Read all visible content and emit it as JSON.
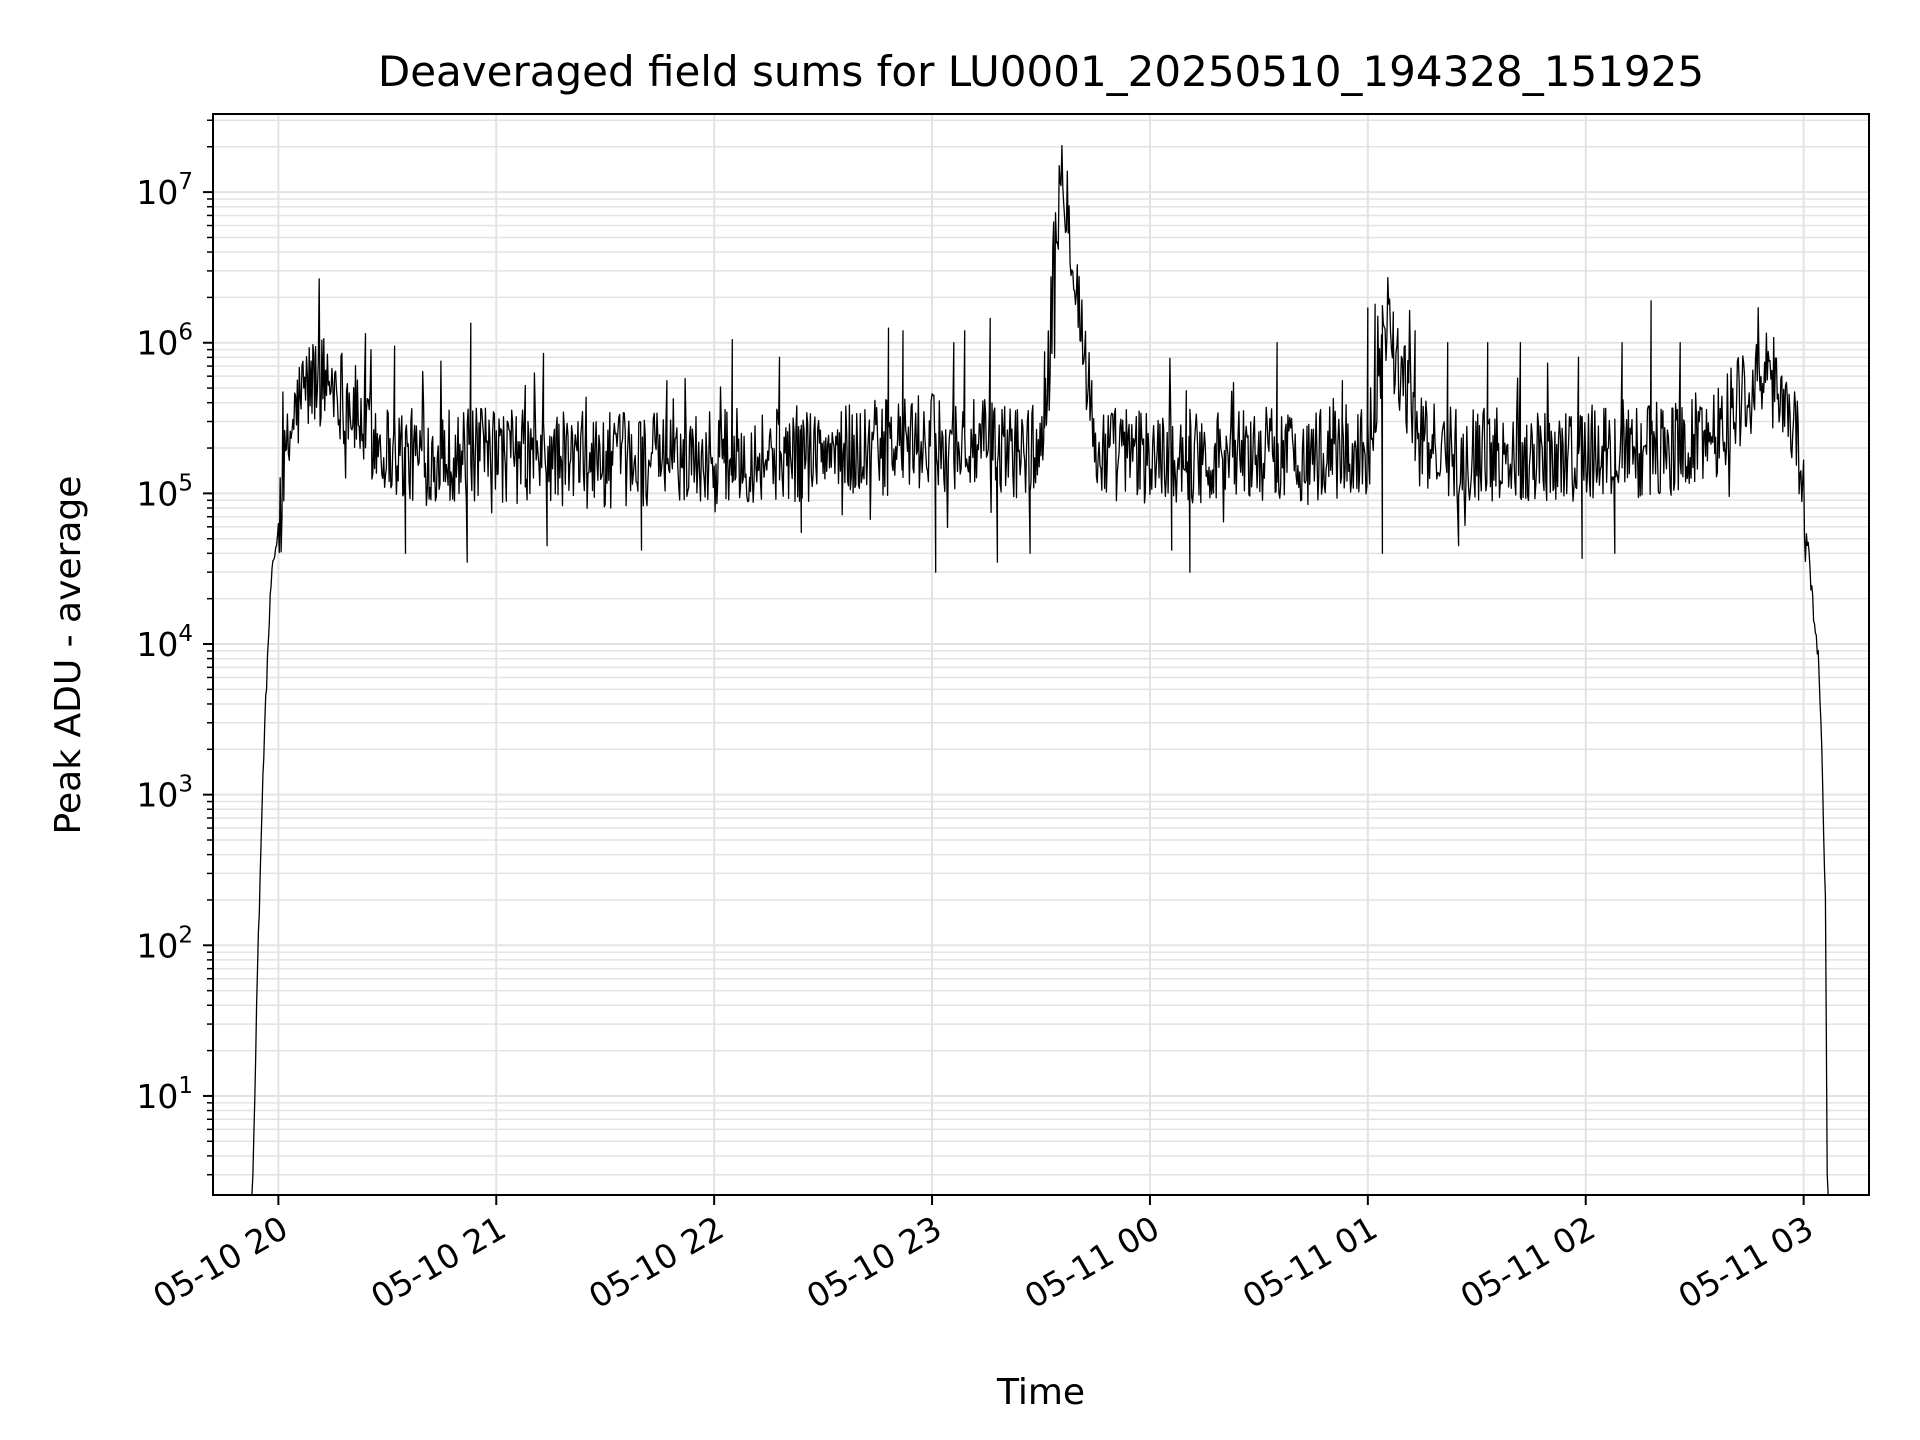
{
  "chart_data": {
    "type": "line",
    "title": "Deaveraged field sums for LU0001_20250510_194328_151925",
    "xlabel": "Time",
    "ylabel": "Peak ADU - average",
    "yscale": "log",
    "ylim": [
      2.2,
      33000000
    ],
    "xlim": [
      "2025-05-10 19:42:00",
      "2025-05-11 03:18:00"
    ],
    "grid": "major and minor",
    "x_tick_labels": [
      "05-10 20",
      "05-10 21",
      "05-10 22",
      "05-10 23",
      "05-11 00",
      "05-11 01",
      "05-11 02",
      "05-11 03"
    ],
    "x_ticks": [
      "2025-05-10 20:00:00",
      "2025-05-10 21:00:00",
      "2025-05-10 22:00:00",
      "2025-05-10 23:00:00",
      "2025-05-11 00:00:00",
      "2025-05-11 01:00:00",
      "2025-05-11 02:00:00",
      "2025-05-11 03:00:00"
    ],
    "y_ticks": [
      {
        "value": 10,
        "base": "10",
        "exp": "1"
      },
      {
        "value": 100,
        "base": "10",
        "exp": "2"
      },
      {
        "value": 1000,
        "base": "10",
        "exp": "3"
      },
      {
        "value": 10000,
        "base": "10",
        "exp": "4"
      },
      {
        "value": 100000,
        "base": "10",
        "exp": "5"
      },
      {
        "value": 1000000,
        "base": "10",
        "exp": "6"
      },
      {
        "value": 10000000,
        "base": "10",
        "exp": "7"
      }
    ],
    "line_color": "#000000",
    "series": [
      {
        "x": [
          "2025-05-10 19:53:00",
          "2025-05-10 19:54:00",
          "2025-05-10 19:55:00",
          "2025-05-10 19:56:00",
          "2025-05-10 19:57:00",
          "2025-05-10 19:58:00",
          "2025-05-10 20:00:00",
          "2025-05-10 20:02:00",
          "2025-05-10 20:04:00",
          "2025-05-10 20:07:00",
          "2025-05-10 20:10:00",
          "2025-05-10 20:15:00",
          "2025-05-10 20:20:00",
          "2025-05-10 20:25:00",
          "2025-05-10 20:30:00",
          "2025-05-10 20:35:00",
          "2025-05-10 20:40:00",
          "2025-05-10 20:45:00",
          "2025-05-10 20:50:00",
          "2025-05-10 21:00:00",
          "2025-05-10 21:15:00",
          "2025-05-10 21:30:00",
          "2025-05-10 21:45:00",
          "2025-05-10 22:00:00",
          "2025-05-10 22:15:00",
          "2025-05-10 22:30:00",
          "2025-05-10 22:45:00",
          "2025-05-10 23:00:00",
          "2025-05-10 23:15:00",
          "2025-05-10 23:30:00",
          "2025-05-10 23:36:00",
          "2025-05-10 23:45:00",
          "2025-05-11 00:00:00",
          "2025-05-11 00:15:00",
          "2025-05-11 00:30:00",
          "2025-05-11 00:45:00",
          "2025-05-11 01:00:00",
          "2025-05-11 01:05:00",
          "2025-05-11 01:15:00",
          "2025-05-11 01:30:00",
          "2025-05-11 01:45:00",
          "2025-05-11 02:00:00",
          "2025-05-11 02:15:00",
          "2025-05-11 02:25:00",
          "2025-05-11 02:35:00",
          "2025-05-11 02:42:00",
          "2025-05-11 02:48:00",
          "2025-05-11 02:52:00",
          "2025-05-11 02:55:00",
          "2025-05-11 02:58:00",
          "2025-05-11 03:00:00",
          "2025-05-11 03:02:00",
          "2025-05-11 03:04:00",
          "2025-05-11 03:05:00",
          "2025-05-11 03:06:00",
          "2025-05-11 03:06:30"
        ],
        "y": [
          3,
          40,
          300,
          2000,
          8000,
          25000,
          60000,
          150000,
          300000,
          480000,
          570000,
          560000,
          380000,
          250000,
          200000,
          180000,
          170000,
          190000,
          175000,
          180000,
          170000,
          165000,
          170000,
          175000,
          180000,
          185000,
          200000,
          220000,
          200000,
          190000,
          16000000,
          190000,
          175000,
          180000,
          185000,
          180000,
          190000,
          1500000,
          200000,
          185000,
          180000,
          185000,
          190000,
          200000,
          250000,
          420000,
          560000,
          550000,
          420000,
          250000,
          100000,
          25000,
          8000,
          2000,
          200,
          3
        ]
      }
    ],
    "noise": {
      "seed": 12345,
      "steps_per_min": 4,
      "amp_dex": 0.32
    },
    "spikes": [
      {
        "x": "2025-05-10 20:24:00",
        "y": 1150000
      },
      {
        "x": "2025-05-10 20:32:00",
        "y": 950000
      },
      {
        "x": "2025-05-10 20:53:00",
        "y": 1350000
      },
      {
        "x": "2025-05-10 21:08:00",
        "y": 520000
      },
      {
        "x": "2025-05-10 21:13:00",
        "y": 850000
      },
      {
        "x": "2025-05-10 21:47:00",
        "y": 560000
      },
      {
        "x": "2025-05-10 22:05:00",
        "y": 1050000
      },
      {
        "x": "2025-05-10 22:18:00",
        "y": 800000
      },
      {
        "x": "2025-05-10 22:48:00",
        "y": 1250000
      },
      {
        "x": "2025-05-10 22:52:00",
        "y": 1200000
      },
      {
        "x": "2025-05-10 23:06:00",
        "y": 1000000
      },
      {
        "x": "2025-05-10 23:09:00",
        "y": 1200000
      },
      {
        "x": "2025-05-10 23:16:00",
        "y": 1450000
      },
      {
        "x": "2025-05-10 23:31:00",
        "y": 870000
      },
      {
        "x": "2025-05-10 23:44:00",
        "y": 560000
      },
      {
        "x": "2025-05-11 00:10:00",
        "y": 480000
      },
      {
        "x": "2025-05-11 00:35:00",
        "y": 1000000
      },
      {
        "x": "2025-05-11 00:53:00",
        "y": 560000
      },
      {
        "x": "2025-05-11 01:00:00",
        "y": 1700000
      },
      {
        "x": "2025-05-11 01:02:00",
        "y": 1800000
      },
      {
        "x": "2025-05-11 01:07:00",
        "y": 1600000
      },
      {
        "x": "2025-05-11 01:13:00",
        "y": 1200000
      },
      {
        "x": "2025-05-11 01:22:00",
        "y": 1000000
      },
      {
        "x": "2025-05-11 01:33:00",
        "y": 1000000
      },
      {
        "x": "2025-05-11 01:42:00",
        "y": 1000000
      },
      {
        "x": "2025-05-11 01:58:00",
        "y": 800000
      },
      {
        "x": "2025-05-11 02:10:00",
        "y": 1000000
      },
      {
        "x": "2025-05-11 02:18:00",
        "y": 1900000
      },
      {
        "x": "2025-05-11 02:26:00",
        "y": 1000000
      }
    ],
    "dips": [
      {
        "x": "2025-05-10 20:35:00",
        "y": 40000
      },
      {
        "x": "2025-05-10 20:52:00",
        "y": 35000
      },
      {
        "x": "2025-05-10 21:14:00",
        "y": 45000
      },
      {
        "x": "2025-05-10 21:40:00",
        "y": 42000
      },
      {
        "x": "2025-05-10 22:24:00",
        "y": 55000
      },
      {
        "x": "2025-05-10 23:01:00",
        "y": 30000
      },
      {
        "x": "2025-05-10 23:18:00",
        "y": 35000
      },
      {
        "x": "2025-05-10 23:27:00",
        "y": 40000
      },
      {
        "x": "2025-05-11 00:06:00",
        "y": 42000
      },
      {
        "x": "2025-05-11 00:11:00",
        "y": 30000
      },
      {
        "x": "2025-05-11 01:04:00",
        "y": 40000
      },
      {
        "x": "2025-05-11 01:25:00",
        "y": 45000
      },
      {
        "x": "2025-05-11 01:59:00",
        "y": 37000
      },
      {
        "x": "2025-05-11 02:08:00",
        "y": 40000
      }
    ]
  }
}
